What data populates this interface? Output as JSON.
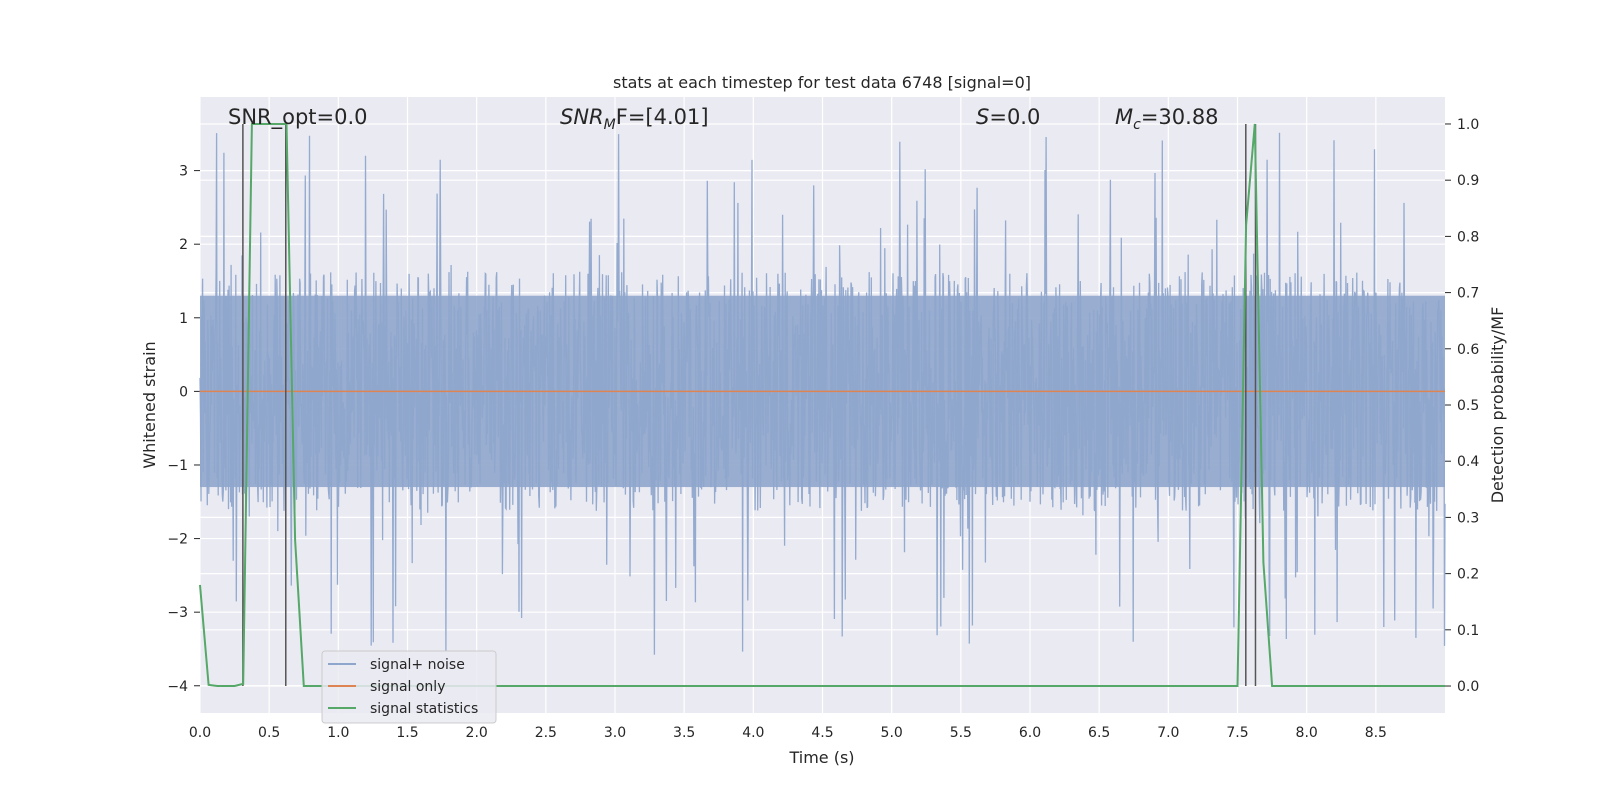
{
  "chart_data": {
    "type": "line",
    "title": "stats at each timestep for test data 6748 [signal=0]",
    "xlabel": "Time (s)",
    "ylabel": "Whitened strain",
    "ylabel_right": "Detection probability/MF",
    "xlim": [
      0,
      9.0
    ],
    "ylim": [
      -4.37,
      4.0
    ],
    "ylim_right": [
      -0.048,
      1.048
    ],
    "x_ticks": [
      0.0,
      0.5,
      1.0,
      1.5,
      2.0,
      2.5,
      3.0,
      3.5,
      4.0,
      4.5,
      5.0,
      5.5,
      6.0,
      6.5,
      7.0,
      7.5,
      8.0,
      8.5
    ],
    "x_tick_labels": [
      "0.0",
      "0.5",
      "1.0",
      "1.5",
      "2.0",
      "2.5",
      "3.0",
      "3.5",
      "4.0",
      "4.5",
      "5.0",
      "5.5",
      "6.0",
      "6.5",
      "7.0",
      "7.5",
      "8.0",
      "8.5"
    ],
    "y_ticks": [
      3,
      2,
      1,
      0,
      -1,
      -2,
      -3,
      -4
    ],
    "y_tick_labels": [
      "3",
      "2",
      "1",
      "0",
      "−1",
      "−2",
      "−3",
      "−4"
    ],
    "y_ticks_right": [
      1.0,
      0.9,
      0.8,
      0.7,
      0.6,
      0.5,
      0.4,
      0.3,
      0.2,
      0.1,
      0.0
    ],
    "y_tick_labels_right": [
      "1.0",
      "0.9",
      "0.8",
      "0.7",
      "0.6",
      "0.5",
      "0.4",
      "0.3",
      "0.2",
      "0.1",
      "0.0"
    ],
    "grid": true,
    "legend_position": "lower-left",
    "annotations": {
      "snr_opt": "SNR_opt=0.0",
      "snr_mf_base": "SNR",
      "snr_mf_sub": "M",
      "snr_mf_rest": "F=[4.01]",
      "s_italic": "S",
      "s_rest": "=0.0",
      "mc_base": "M",
      "mc_sub": "c",
      "mc_rest": "=30.88"
    },
    "series": [
      {
        "name": "signal+ noise",
        "color": "#8fa6cc",
        "style": "noise",
        "x_range": [
          0,
          9.0
        ],
        "typical_abs_max": 1.3,
        "peak_abs_max": 3.6
      },
      {
        "name": "signal only",
        "color": "#dd8452",
        "x": [
          0,
          9.0
        ],
        "y": [
          0,
          0
        ]
      },
      {
        "name": "signal statistics",
        "color": "#55a868",
        "axis": "right",
        "x": [
          0.0,
          0.0625,
          0.125,
          0.1875,
          0.25,
          0.3125,
          0.375,
          0.4375,
          0.5,
          0.5625,
          0.625,
          0.6875,
          0.75,
          7.5,
          7.5625,
          7.625,
          7.6875,
          7.75,
          9.0
        ],
        "y": [
          0.18,
          0.002,
          0.0,
          0.0,
          0.0,
          0.004,
          1.0,
          1.0,
          1.0,
          1.0,
          1.0,
          0.26,
          0.0,
          0.0,
          0.82,
          1.0,
          0.22,
          0.0,
          0.0
        ]
      }
    ],
    "vertical_lines": [
      0.31,
      0.62,
      7.56,
      7.63
    ],
    "vertical_lines_range_right": [
      0.0,
      1.0
    ],
    "vertical_line_color": "#555555"
  }
}
